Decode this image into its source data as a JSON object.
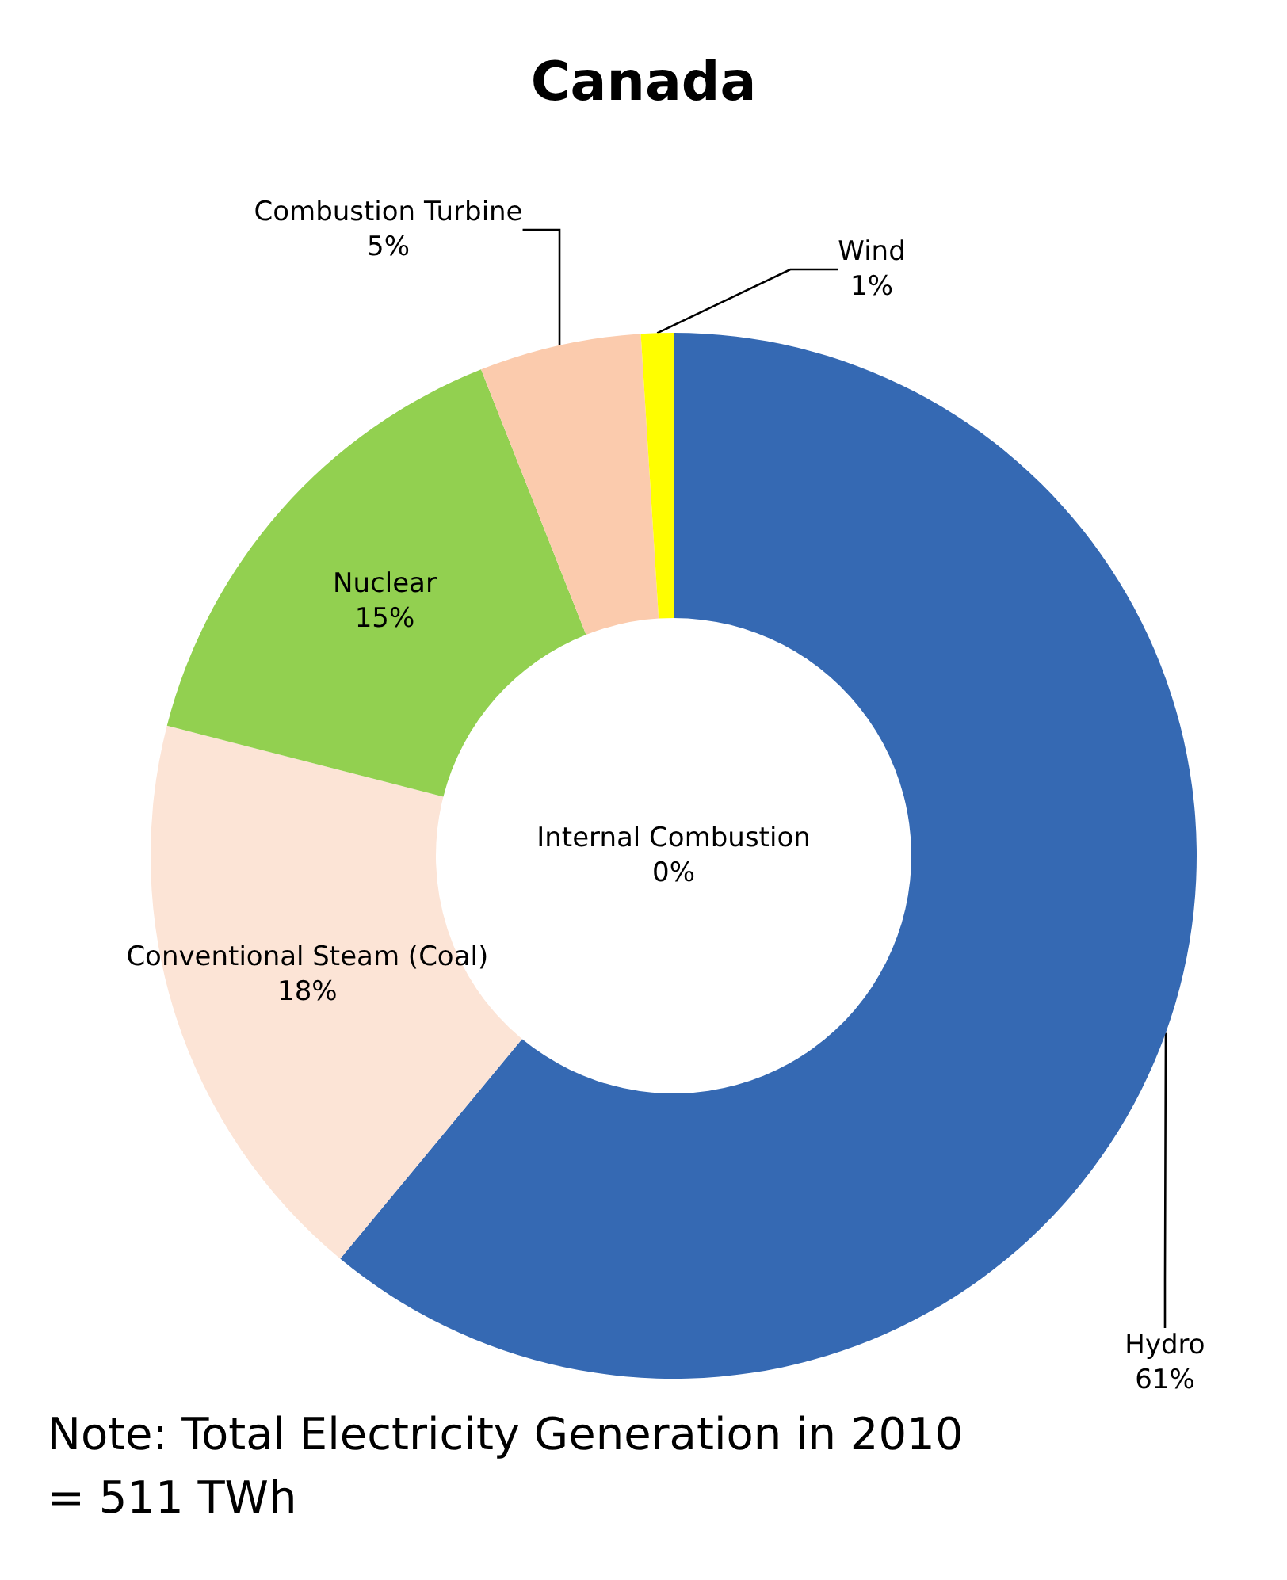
{
  "chart_data": {
    "type": "donut",
    "title": "Canada",
    "categories": [
      "Hydro",
      "Conventional Steam (Coal)",
      "Nuclear",
      "Internal Combustion",
      "Combustion Turbine",
      "Wind"
    ],
    "values": [
      61,
      18,
      15,
      0,
      5,
      1
    ],
    "value_labels": [
      "61%",
      "18%",
      "15%",
      "0%",
      "5%",
      "1%"
    ],
    "colors": [
      "#3569b3",
      "#fce4d6",
      "#92d050",
      "#ff0000",
      "#fbcbad",
      "#ffff00"
    ],
    "annotations": [
      "Note: Total Electricity Generation in 2010 = 511 TWh"
    ]
  }
}
